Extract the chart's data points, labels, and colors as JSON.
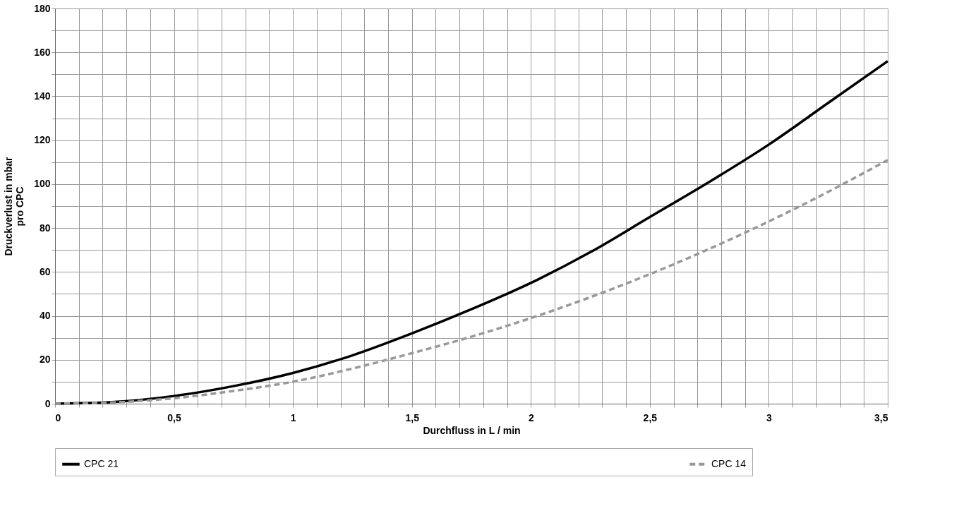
{
  "chart_data": {
    "type": "line",
    "xlabel": "Durchfluss in L / min",
    "ylabel": "Druckverlust in mbar pro CPC",
    "xlim": [
      0,
      3.5
    ],
    "ylim": [
      0,
      180
    ],
    "xticks": [
      0,
      {
        "value": 0.1,
        "label": null
      },
      {
        "value": 0.2,
        "label": null
      },
      {
        "value": 0.3,
        "label": null
      },
      {
        "value": 0.4,
        "label": null
      },
      {
        "value": 0.5,
        "label": "0,5"
      },
      {
        "value": 0.6,
        "label": null
      },
      {
        "value": 0.7,
        "label": null
      },
      {
        "value": 0.8,
        "label": null
      },
      {
        "value": 0.9,
        "label": null
      },
      1,
      {
        "value": 1.1,
        "label": null
      },
      {
        "value": 1.2,
        "label": null
      },
      {
        "value": 1.3,
        "label": null
      },
      {
        "value": 1.4,
        "label": null
      },
      {
        "value": 1.5,
        "label": "1,5"
      },
      {
        "value": 1.6,
        "label": null
      },
      {
        "value": 1.7,
        "label": null
      },
      {
        "value": 1.8,
        "label": null
      },
      {
        "value": 1.9,
        "label": null
      },
      2,
      {
        "value": 2.1,
        "label": null
      },
      {
        "value": 2.2,
        "label": null
      },
      {
        "value": 2.3,
        "label": null
      },
      {
        "value": 2.4,
        "label": null
      },
      {
        "value": 2.5,
        "label": "2,5"
      },
      {
        "value": 2.6,
        "label": null
      },
      {
        "value": 2.7,
        "label": null
      },
      {
        "value": 2.8,
        "label": null
      },
      {
        "value": 2.9,
        "label": null
      },
      3,
      {
        "value": 3.1,
        "label": null
      },
      {
        "value": 3.2,
        "label": null
      },
      {
        "value": 3.3,
        "label": null
      },
      {
        "value": 3.4,
        "label": null
      },
      {
        "value": 3.5,
        "label": "3,5"
      }
    ],
    "yticks": [
      0,
      {
        "value": 10,
        "label": null
      },
      20,
      {
        "value": 30,
        "label": null
      },
      40,
      {
        "value": 50,
        "label": null
      },
      60,
      {
        "value": 70,
        "label": null
      },
      80,
      {
        "value": 90,
        "label": null
      },
      100,
      {
        "value": 110,
        "label": null
      },
      120,
      {
        "value": 130,
        "label": null
      },
      140,
      {
        "value": 150,
        "label": null
      },
      160,
      {
        "value": 170,
        "label": null
      },
      180
    ],
    "grid": true,
    "legend": "bottom",
    "marker": "none",
    "x": [
      0,
      0.25,
      0.5,
      0.75,
      1,
      1.25,
      1.5,
      1.75,
      2,
      2.25,
      2.5,
      2.75,
      3,
      3.25,
      3.5
    ],
    "series": [
      {
        "name": "CPC 21",
        "color": "#000000",
        "line_style": "solid",
        "values": [
          0,
          0.8,
          3.5,
          8,
          14,
          22,
          32,
          43,
          55,
          69,
          85,
          101,
          118,
          137,
          156
        ]
      },
      {
        "name": "CPC 14",
        "color": "#999999",
        "line_style": "dashed",
        "values": [
          0,
          0.6,
          2.5,
          5.8,
          10,
          16,
          23,
          30.5,
          39,
          48.5,
          59,
          70.5,
          83,
          96.5,
          111
        ]
      }
    ]
  }
}
